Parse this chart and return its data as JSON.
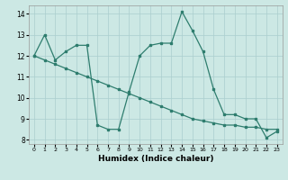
{
  "xlabel": "Humidex (Indice chaleur)",
  "xlim": [
    -0.5,
    23.5
  ],
  "ylim": [
    7.8,
    14.4
  ],
  "yticks": [
    8,
    9,
    10,
    11,
    12,
    13,
    14
  ],
  "xticks": [
    0,
    1,
    2,
    3,
    4,
    5,
    6,
    7,
    8,
    9,
    10,
    11,
    12,
    13,
    14,
    15,
    16,
    17,
    18,
    19,
    20,
    21,
    22,
    23
  ],
  "line_color": "#2e7d6e",
  "bg_color": "#cce8e4",
  "grid_color": "#aacece",
  "line1_x": [
    0,
    1,
    2,
    3,
    4,
    5,
    6,
    7,
    8,
    9,
    10,
    11,
    12,
    13,
    14,
    15,
    16,
    17,
    18,
    19,
    20,
    21,
    22,
    23
  ],
  "line1_y": [
    12.0,
    13.0,
    11.8,
    12.2,
    12.5,
    12.5,
    8.7,
    8.5,
    8.5,
    10.3,
    12.0,
    12.5,
    12.6,
    12.6,
    14.1,
    13.2,
    12.2,
    10.4,
    9.2,
    9.2,
    9.0,
    9.0,
    8.1,
    8.4
  ],
  "line2_x": [
    0,
    1,
    2,
    3,
    4,
    5,
    6,
    7,
    8,
    9,
    10,
    11,
    12,
    13,
    14,
    15,
    16,
    17,
    18,
    19,
    20,
    21,
    22,
    23
  ],
  "line2_y": [
    12.0,
    11.8,
    11.6,
    11.4,
    11.2,
    11.0,
    10.8,
    10.6,
    10.4,
    10.2,
    10.0,
    9.8,
    9.6,
    9.4,
    9.2,
    9.0,
    8.9,
    8.8,
    8.7,
    8.7,
    8.6,
    8.6,
    8.5,
    8.5
  ],
  "marker_size": 2.0,
  "linewidth": 0.9
}
